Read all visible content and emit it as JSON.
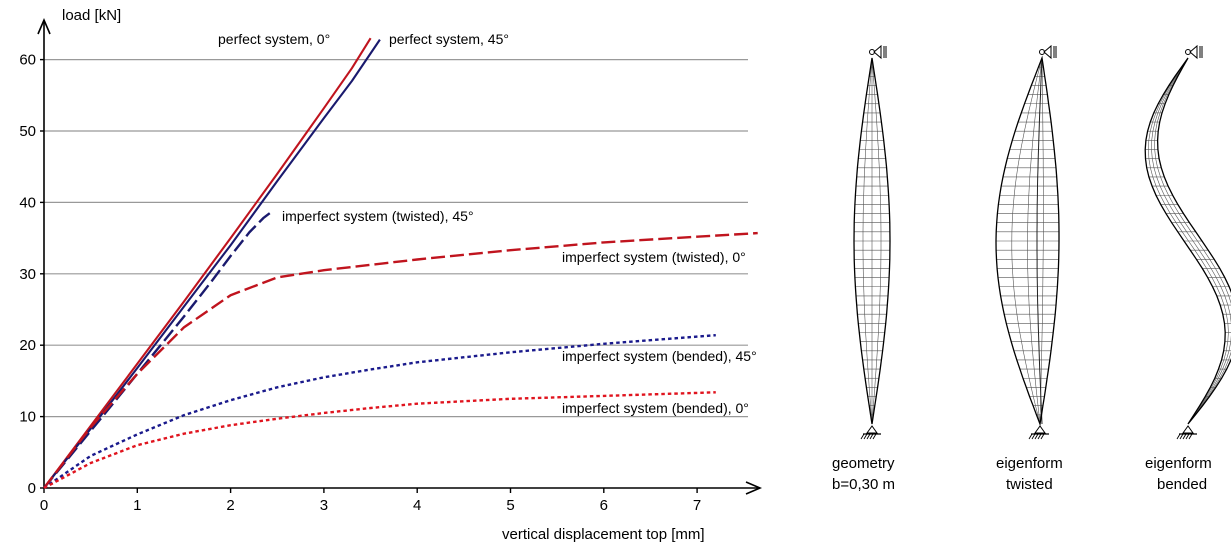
{
  "chart_data": {
    "type": "line",
    "ylabel": "load [kN]",
    "xlabel": "vertical displacement top [mm]",
    "xlim": [
      0,
      7.65
    ],
    "ylim": [
      0,
      64
    ],
    "x_ticks": [
      0,
      1,
      2,
      3,
      4,
      5,
      6,
      7
    ],
    "y_ticks": [
      0,
      10,
      20,
      30,
      40,
      50,
      60
    ],
    "grid": "horizontal",
    "series": [
      {
        "name": "perfect system, 0°",
        "color": "#c0141e",
        "style": "solid",
        "x": [
          0,
          0.5,
          1.0,
          1.5,
          2.0,
          2.5,
          3.0,
          3.3,
          3.5
        ],
        "y": [
          0,
          8.7,
          17.4,
          26.1,
          35.0,
          44.0,
          53.2,
          58.8,
          63.0
        ]
      },
      {
        "name": "perfect system, 45°",
        "color": "#1a1a6e",
        "style": "solid",
        "x": [
          0,
          0.5,
          1.0,
          1.5,
          2.0,
          2.5,
          3.0,
          3.3,
          3.6
        ],
        "y": [
          0,
          8.3,
          16.8,
          25.4,
          34.0,
          43.0,
          51.8,
          57.0,
          62.8
        ]
      },
      {
        "name": "imperfect system (twisted), 45°",
        "color": "#1a1a6e",
        "style": "dashed",
        "x": [
          0,
          0.5,
          1.0,
          1.5,
          1.8,
          2.0,
          2.2,
          2.35,
          2.42
        ],
        "y": [
          0,
          8.0,
          16.0,
          24.0,
          29.0,
          32.5,
          35.8,
          37.8,
          38.5
        ]
      },
      {
        "name": "imperfect system (twisted), 0°",
        "color": "#c0141e",
        "style": "dashed",
        "x": [
          0,
          0.5,
          1.0,
          1.5,
          2.0,
          2.5,
          3.0,
          4.0,
          5.0,
          6.0,
          7.0,
          7.65
        ],
        "y": [
          0,
          8.5,
          16.0,
          22.5,
          27.0,
          29.5,
          30.5,
          32.0,
          33.3,
          34.4,
          35.2,
          35.7
        ]
      },
      {
        "name": "imperfect system (bended), 45°",
        "color": "#1a1a8c",
        "style": "dotted",
        "x": [
          0,
          0.5,
          1.0,
          1.5,
          2.0,
          2.5,
          3.0,
          3.5,
          4.0,
          5.0,
          6.0,
          7.2
        ],
        "y": [
          0,
          4.5,
          7.5,
          10.2,
          12.3,
          14.1,
          15.5,
          16.6,
          17.6,
          19.0,
          20.2,
          21.4
        ]
      },
      {
        "name": "imperfect system (bended), 0°",
        "color": "#e0141e",
        "style": "dotted",
        "x": [
          0,
          0.5,
          1.0,
          1.5,
          2.0,
          2.5,
          3.0,
          3.5,
          4.0,
          5.0,
          6.0,
          7.2
        ],
        "y": [
          0,
          3.5,
          6.0,
          7.6,
          8.8,
          9.7,
          10.5,
          11.2,
          11.8,
          12.5,
          12.9,
          13.4
        ]
      }
    ]
  },
  "diagrams": [
    {
      "caption_line1": "geometry",
      "caption_line2": "b=0,30 m"
    },
    {
      "caption_line1": "eigenform",
      "caption_line2": "twisted"
    },
    {
      "caption_line1": "eigenform",
      "caption_line2": "bended"
    }
  ],
  "colors": {
    "grid": "#999999",
    "axis": "#000000",
    "mesh": "#555555"
  }
}
